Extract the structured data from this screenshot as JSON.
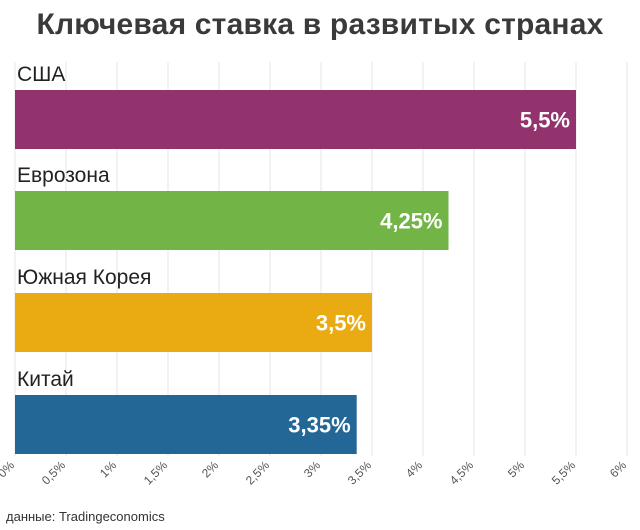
{
  "chart_data": {
    "type": "bar",
    "orientation": "horizontal",
    "title": "Ключевая ставка в развитых странах",
    "categories": [
      "США",
      "Еврозона",
      "Южная Корея",
      "Китай"
    ],
    "values": [
      5.5,
      4.25,
      3.5,
      3.35
    ],
    "value_labels": [
      "5,5%",
      "4,25%",
      "3,5%",
      "3,35%"
    ],
    "colors": [
      "#93336e",
      "#72b546",
      "#eaaa11",
      "#236796"
    ],
    "xlim": [
      0,
      6
    ],
    "x_ticks": [
      0,
      0.5,
      1,
      1.5,
      2,
      2.5,
      3,
      3.5,
      4,
      4.5,
      5,
      5.5,
      6
    ],
    "x_tick_labels": [
      "0%",
      "0,5%",
      "1%",
      "1,5%",
      "2%",
      "2,5%",
      "3%",
      "3,5%",
      "4%",
      "4,5%",
      "5%",
      "5,5%",
      "6%"
    ],
    "grid": true,
    "legend": "none"
  },
  "source": "данные: Tradingeconomics"
}
